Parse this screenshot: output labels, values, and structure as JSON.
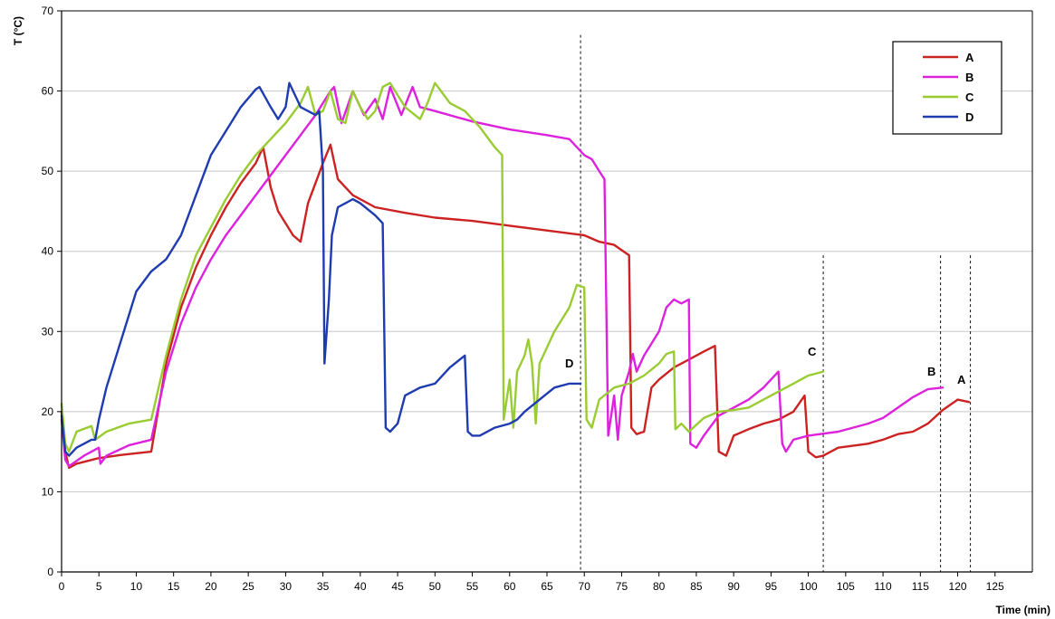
{
  "chart_data": {
    "type": "line",
    "title": "",
    "xlabel": "Time (min)",
    "ylabel": "T (°C)",
    "xlim": [
      0,
      130
    ],
    "ylim": [
      0,
      70
    ],
    "xticks": [
      0,
      5,
      10,
      15,
      20,
      25,
      30,
      35,
      40,
      45,
      50,
      55,
      60,
      65,
      70,
      75,
      80,
      85,
      90,
      95,
      100,
      105,
      110,
      115,
      120,
      125
    ],
    "yticks": [
      0,
      10,
      20,
      30,
      40,
      50,
      60,
      70
    ],
    "grid": "horizontal",
    "legend_position": "top-right",
    "series": [
      {
        "name": "A",
        "color": "#cc2222",
        "points": [
          [
            0,
            20
          ],
          [
            0.5,
            15
          ],
          [
            1,
            13
          ],
          [
            2,
            13.5
          ],
          [
            5,
            14.2
          ],
          [
            8,
            14.6
          ],
          [
            12,
            15
          ],
          [
            14,
            26
          ],
          [
            16,
            33
          ],
          [
            18,
            38
          ],
          [
            20,
            42
          ],
          [
            22,
            45.5
          ],
          [
            24,
            48.5
          ],
          [
            26,
            51
          ],
          [
            27,
            53
          ],
          [
            28,
            48
          ],
          [
            29,
            45
          ],
          [
            31,
            42
          ],
          [
            32,
            41.2
          ],
          [
            33,
            46
          ],
          [
            35,
            51
          ],
          [
            36,
            53.3
          ],
          [
            37,
            49
          ],
          [
            39,
            47
          ],
          [
            42,
            45.5
          ],
          [
            46,
            44.8
          ],
          [
            50,
            44.2
          ],
          [
            55,
            43.8
          ],
          [
            60,
            43.2
          ],
          [
            65,
            42.6
          ],
          [
            70,
            42
          ],
          [
            72,
            41.2
          ],
          [
            74,
            40.8
          ],
          [
            76,
            39.5
          ],
          [
            76.3,
            18
          ],
          [
            77,
            17.2
          ],
          [
            78,
            17.5
          ],
          [
            79,
            23
          ],
          [
            80,
            24
          ],
          [
            82,
            25.5
          ],
          [
            84,
            26.5
          ],
          [
            86,
            27.5
          ],
          [
            87.5,
            28.2
          ],
          [
            88,
            15
          ],
          [
            89,
            14.5
          ],
          [
            90,
            17
          ],
          [
            92,
            17.8
          ],
          [
            94,
            18.5
          ],
          [
            96,
            19
          ],
          [
            98,
            20
          ],
          [
            99.5,
            22
          ],
          [
            100,
            15
          ],
          [
            101,
            14.3
          ],
          [
            102,
            14.5
          ],
          [
            104,
            15.5
          ],
          [
            108,
            16
          ],
          [
            110,
            16.5
          ],
          [
            112,
            17.2
          ],
          [
            114,
            17.5
          ],
          [
            116,
            18.5
          ],
          [
            118,
            20.2
          ],
          [
            120,
            21.5
          ],
          [
            121.5,
            21.2
          ]
        ]
      },
      {
        "name": "B",
        "color": "#dd22dd",
        "points": [
          [
            0,
            19
          ],
          [
            0.5,
            14
          ],
          [
            1,
            13.2
          ],
          [
            3,
            14.5
          ],
          [
            5,
            15.5
          ],
          [
            5.2,
            13.5
          ],
          [
            6,
            14.5
          ],
          [
            9,
            15.8
          ],
          [
            12,
            16.5
          ],
          [
            14,
            25
          ],
          [
            16,
            31
          ],
          [
            18,
            35.5
          ],
          [
            20,
            39
          ],
          [
            22,
            42
          ],
          [
            24,
            44.5
          ],
          [
            26,
            47
          ],
          [
            28,
            49.5
          ],
          [
            30,
            52
          ],
          [
            32,
            54.5
          ],
          [
            34,
            57
          ],
          [
            36,
            60
          ],
          [
            36.5,
            60.5
          ],
          [
            37.5,
            56
          ],
          [
            39,
            60
          ],
          [
            40.5,
            57
          ],
          [
            42,
            59
          ],
          [
            43,
            56.5
          ],
          [
            44,
            60.5
          ],
          [
            45.5,
            57
          ],
          [
            47,
            60.5
          ],
          [
            48,
            58
          ],
          [
            50,
            57.5
          ],
          [
            55,
            56.2
          ],
          [
            60,
            55.2
          ],
          [
            65,
            54.5
          ],
          [
            68,
            54
          ],
          [
            69,
            53
          ],
          [
            70,
            52
          ],
          [
            71,
            51.5
          ],
          [
            72,
            50
          ],
          [
            72.7,
            49
          ],
          [
            73.2,
            17
          ],
          [
            74,
            22
          ],
          [
            74.5,
            16.5
          ],
          [
            75,
            22
          ],
          [
            76,
            25
          ],
          [
            76.5,
            27.2
          ],
          [
            77,
            25
          ],
          [
            78,
            27
          ],
          [
            80,
            30
          ],
          [
            81,
            33
          ],
          [
            82,
            34
          ],
          [
            83,
            33.5
          ],
          [
            84,
            34
          ],
          [
            84.2,
            16
          ],
          [
            85,
            15.5
          ],
          [
            86,
            17
          ],
          [
            88,
            19.5
          ],
          [
            90,
            20.5
          ],
          [
            92,
            21.5
          ],
          [
            94,
            23
          ],
          [
            96,
            25
          ],
          [
            96.5,
            16
          ],
          [
            97,
            15
          ],
          [
            98,
            16.5
          ],
          [
            100,
            17
          ],
          [
            104,
            17.5
          ],
          [
            108,
            18.5
          ],
          [
            110,
            19.2
          ],
          [
            112,
            20.5
          ],
          [
            114,
            21.8
          ],
          [
            116,
            22.8
          ],
          [
            118,
            23
          ]
        ]
      },
      {
        "name": "C",
        "color": "#99cc33",
        "points": [
          [
            0,
            21
          ],
          [
            0.5,
            16
          ],
          [
            1,
            15
          ],
          [
            2,
            17.5
          ],
          [
            4,
            18.2
          ],
          [
            4.5,
            16.5
          ],
          [
            6,
            17.5
          ],
          [
            9,
            18.5
          ],
          [
            12,
            19
          ],
          [
            14,
            27
          ],
          [
            16,
            34
          ],
          [
            18,
            39.5
          ],
          [
            20,
            43
          ],
          [
            22,
            46.5
          ],
          [
            24,
            49.5
          ],
          [
            26,
            52
          ],
          [
            28,
            54
          ],
          [
            30,
            56
          ],
          [
            32,
            58.5
          ],
          [
            33,
            60.5
          ],
          [
            34,
            57
          ],
          [
            35,
            57.5
          ],
          [
            36,
            60
          ],
          [
            37,
            56.5
          ],
          [
            38,
            56
          ],
          [
            39,
            60
          ],
          [
            40,
            58
          ],
          [
            41,
            56.5
          ],
          [
            42,
            57.5
          ],
          [
            43,
            60.5
          ],
          [
            44,
            61
          ],
          [
            46,
            58
          ],
          [
            48,
            56.5
          ],
          [
            49,
            58.5
          ],
          [
            50,
            61
          ],
          [
            52,
            58.5
          ],
          [
            54,
            57.5
          ],
          [
            56,
            55.5
          ],
          [
            58,
            53
          ],
          [
            59,
            52
          ],
          [
            59.2,
            19
          ],
          [
            60,
            24
          ],
          [
            60.5,
            18
          ],
          [
            61,
            25
          ],
          [
            62,
            27
          ],
          [
            62.5,
            29
          ],
          [
            63,
            26
          ],
          [
            63.5,
            18.5
          ],
          [
            64,
            26
          ],
          [
            66,
            30
          ],
          [
            68,
            33
          ],
          [
            69,
            35.8
          ],
          [
            70,
            35.5
          ],
          [
            70.3,
            19
          ],
          [
            71,
            18
          ],
          [
            72,
            21.5
          ],
          [
            74,
            23
          ],
          [
            76,
            23.5
          ],
          [
            78,
            24.5
          ],
          [
            80,
            26
          ],
          [
            81,
            27.2
          ],
          [
            82,
            27.5
          ],
          [
            82.2,
            17.8
          ],
          [
            83,
            18.5
          ],
          [
            84,
            17.5
          ],
          [
            86,
            19.2
          ],
          [
            88,
            20
          ],
          [
            90,
            20.2
          ],
          [
            92,
            20.5
          ],
          [
            94,
            21.5
          ],
          [
            96,
            22.5
          ],
          [
            98,
            23.5
          ],
          [
            100,
            24.5
          ],
          [
            102,
            25
          ]
        ]
      },
      {
        "name": "D",
        "color": "#1f3bb0",
        "points": [
          [
            0,
            19.5
          ],
          [
            0.5,
            15
          ],
          [
            1,
            14.5
          ],
          [
            2,
            15.5
          ],
          [
            4,
            16.5
          ],
          [
            4.5,
            16.5
          ],
          [
            5,
            19
          ],
          [
            6,
            23
          ],
          [
            8,
            29
          ],
          [
            10,
            35
          ],
          [
            12,
            37.5
          ],
          [
            14,
            39
          ],
          [
            16,
            42
          ],
          [
            18,
            47
          ],
          [
            20,
            52
          ],
          [
            22,
            55
          ],
          [
            24,
            58
          ],
          [
            26,
            60.2
          ],
          [
            26.5,
            60.5
          ],
          [
            28,
            58
          ],
          [
            29,
            56.5
          ],
          [
            30,
            58
          ],
          [
            30.5,
            61
          ],
          [
            31.5,
            59
          ],
          [
            32,
            58
          ],
          [
            33,
            57.5
          ],
          [
            34,
            57
          ],
          [
            34.5,
            57.5
          ],
          [
            35,
            50
          ],
          [
            35.2,
            26
          ],
          [
            35.8,
            34
          ],
          [
            36.2,
            42
          ],
          [
            37,
            45.5
          ],
          [
            38,
            46
          ],
          [
            39,
            46.5
          ],
          [
            40,
            46
          ],
          [
            42,
            44.5
          ],
          [
            43,
            43.5
          ],
          [
            43.4,
            18
          ],
          [
            44,
            17.5
          ],
          [
            45,
            18.5
          ],
          [
            46,
            22
          ],
          [
            48,
            23
          ],
          [
            50,
            23.5
          ],
          [
            52,
            25.5
          ],
          [
            54,
            27
          ],
          [
            54.4,
            17.5
          ],
          [
            55,
            17
          ],
          [
            56,
            17
          ],
          [
            58,
            18
          ],
          [
            60,
            18.5
          ],
          [
            61,
            19
          ],
          [
            62,
            20
          ],
          [
            64,
            21.5
          ],
          [
            66,
            23
          ],
          [
            68,
            23.5
          ],
          [
            69.5,
            23.5
          ]
        ]
      }
    ],
    "end_labels": [
      {
        "series": "D",
        "text": "D",
        "x": 68,
        "y": 25.5
      },
      {
        "series": "C",
        "text": "C",
        "x": 100.5,
        "y": 27
      },
      {
        "series": "B",
        "text": "B",
        "x": 116.5,
        "y": 24.5
      },
      {
        "series": "A",
        "text": "A",
        "x": 120.5,
        "y": 23.5
      }
    ],
    "vertical_markers": [
      {
        "x": 69.5,
        "y_top": 67
      },
      {
        "x": 102,
        "y_top": 39.5
      },
      {
        "x": 117.7,
        "y_top": 39.5
      },
      {
        "x": 121.7,
        "y_top": 39.5
      }
    ]
  }
}
